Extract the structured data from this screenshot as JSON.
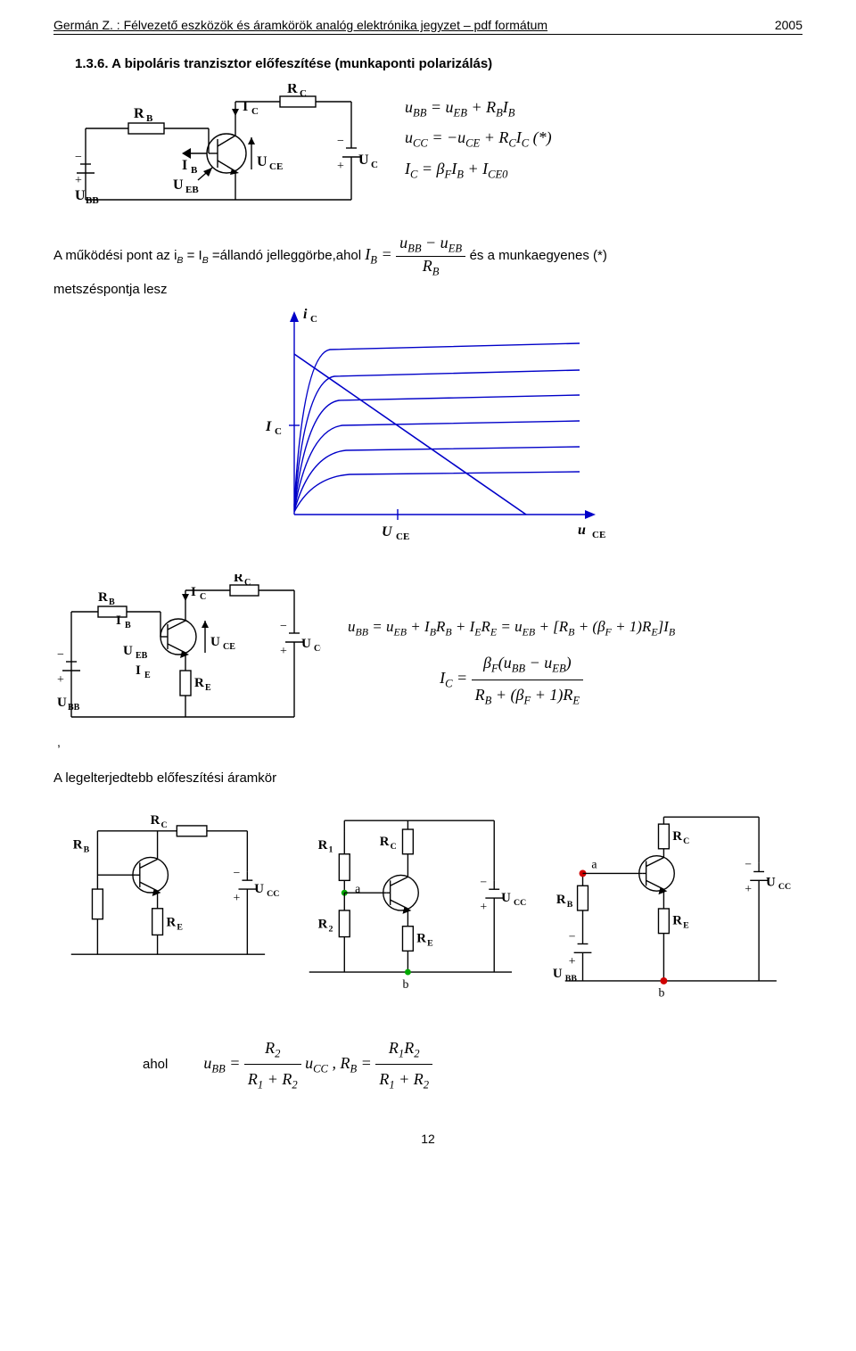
{
  "header": {
    "title": "Germán Z. : Félvezető eszközök és áramkörök analóg elektrónika jegyzet – pdf formátum",
    "year": "2005"
  },
  "section": {
    "heading": "1.3.6. A bipoláris tranzisztor előfeszítése (munkaponti polarizálás)"
  },
  "eq_top": {
    "line1": "u<sub>BB</sub> = u<sub>EB</sub> + R<sub>B</sub>I<sub>B</sub>",
    "line2": "u<sub>CC</sub> = −u<sub>CE</sub> + R<sub>C</sub>I<sub>C</sub> (*)",
    "line3": "I<sub>C</sub> = β<sub>F</sub>I<sub>B</sub> + I<sub>CE0</sub>"
  },
  "para1_prefix": "A működési pont az i",
  "para1_sub1": "B",
  "para1_mid1": " = I",
  "para1_sub2": "B",
  "para1_mid2": " =állandó  jelleggörbe,ahol ",
  "para1_eq_left": "I<sub>B</sub> =",
  "para1_frac_num": "u<sub>BB</sub> − u<sub>EB</sub>",
  "para1_frac_den": "R<sub>B</sub>",
  "para1_after": " és a munkaegyenes (*)",
  "para2": "metszéspontja lesz",
  "schem1_labels": {
    "RB": "R",
    "RBs": "B",
    "IC": "I",
    "ICs": "C",
    "RC": "R",
    "RCs": "C",
    "UBB": "U",
    "UBBs": "BB",
    "IB": "I",
    "IBs": "B",
    "UEB": "U",
    "UEBs": "EB",
    "UCE": "U",
    "UCEs": "CE",
    "UCC": "U",
    "UCCs": "CC"
  },
  "graph_labels": {
    "iC": "i",
    "iCs": "C",
    "IC": "I",
    "ICs": "C",
    "UCE": "U",
    "UCEs": "CE",
    "uCE": "u",
    "uCEs": "CE"
  },
  "schem2_labels": {
    "RB": "R",
    "RBs": "B",
    "IB": "I",
    "IBs": "B",
    "IC": "I",
    "ICs": "C",
    "RC": "R",
    "RCs": "C",
    "UEB": "U",
    "UEBs": "EB",
    "IE": "I",
    "IEs": "E",
    "UCE": "U",
    "UCEs": "CE",
    "RE": "R",
    "REs": "E",
    "UBB": "U",
    "UBBs": "BB",
    "UCC": "U",
    "UCCs": "CC"
  },
  "eq_mid": {
    "line1": "u<sub>BB</sub> = u<sub>EB</sub> + I<sub>B</sub>R<sub>B</sub> + I<sub>E</sub>R<sub>E</sub> = u<sub>EB</sub> + [R<sub>B</sub> + (β<sub>F</sub> + 1)R<sub>E</sub>]I<sub>B</sub>",
    "line2_left": "I<sub>C</sub> =",
    "line2_num": "β<sub>F</sub>(u<sub>BB</sub> − u<sub>EB</sub>)",
    "line2_den": "R<sub>B</sub> + (β<sub>F</sub> + 1)R<sub>E</sub>"
  },
  "heading2": "A legelterjedtebb előfeszítési áramkör",
  "schem3_labels": {
    "RB": "R",
    "RC": "R",
    "RE": "R",
    "UCC": "U",
    "R1": "R",
    "R2": "R",
    "a": "a",
    "b": "b",
    "UBB": "U"
  },
  "subs": {
    "B": "B",
    "C": "C",
    "E": "E",
    "CC": "CC",
    "1": "1",
    "2": "2",
    "BB": "BB"
  },
  "ahol": {
    "label": "ahol",
    "eq1_left": "u<sub>BB</sub> =",
    "eq1_num": "R<sub>2</sub>",
    "eq1_den": "R<sub>1</sub> + R<sub>2</sub>",
    "eq1_after": "u<sub>CC</sub> , R<sub>B</sub> =",
    "eq2_num": "R<sub>1</sub>R<sub>2</sub>",
    "eq2_den": "R<sub>1</sub> + R<sub>2</sub>"
  },
  "pagenum": "12",
  "colors": {
    "circuit": "#000000",
    "graph": "#0000c8",
    "dot": "#00a800",
    "red": "#d00000"
  }
}
